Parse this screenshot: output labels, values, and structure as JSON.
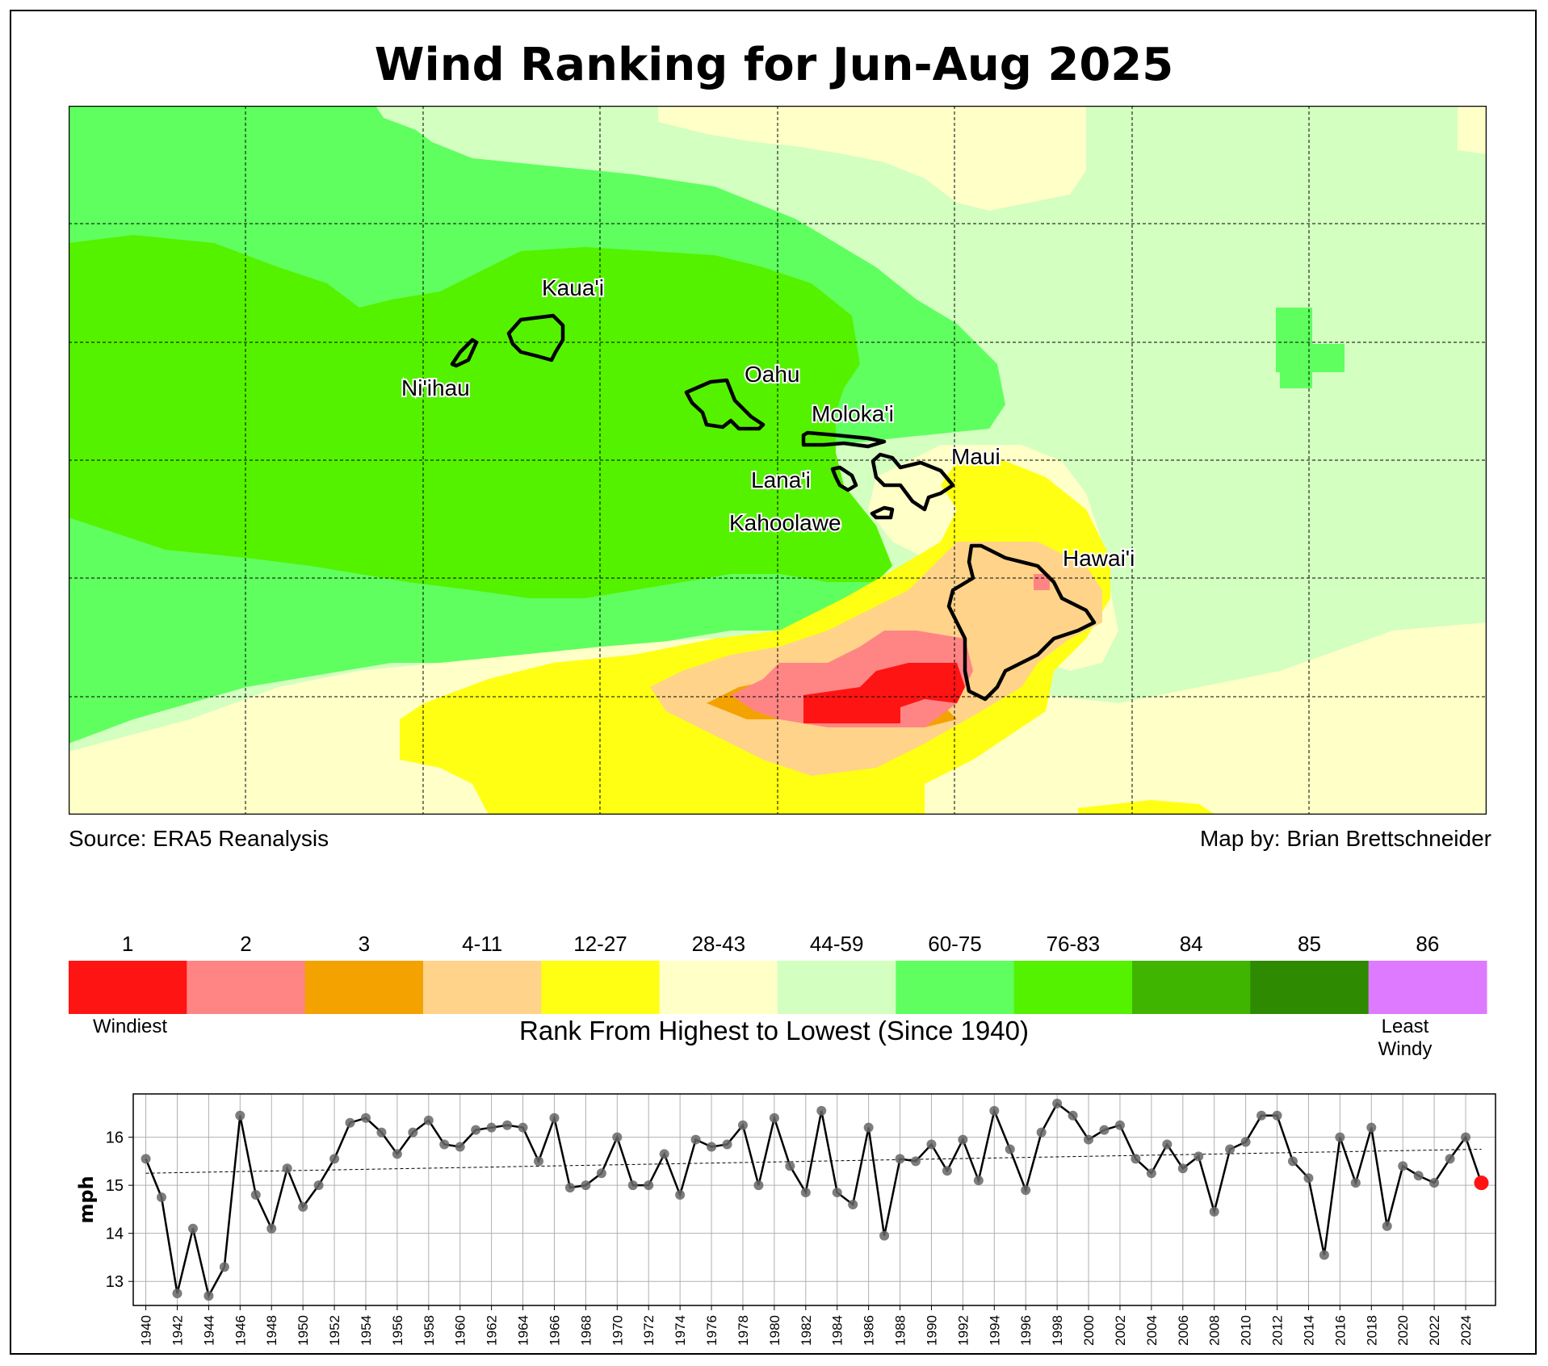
{
  "title": "Wind Ranking for Jun-Aug 2025",
  "source": "Source: ERA5 Reanalysis",
  "credit": "Map by: Brian Brettschneider",
  "islands": [
    "Kaua'i",
    "Ni'ihau",
    "Oahu",
    "Moloka'i",
    "Maui",
    "Lana'i",
    "Kahoolawe",
    "Hawai'i"
  ],
  "legend": {
    "caption": "Rank From Highest to Lowest (Since 1940)",
    "low_label": "Windiest",
    "high_label_1": "Least",
    "high_label_2": "Windy",
    "bins": [
      {
        "label": "1",
        "color": "#ff1414"
      },
      {
        "label": "2",
        "color": "#ff8585"
      },
      {
        "label": "3",
        "color": "#f4a200"
      },
      {
        "label": "4-11",
        "color": "#ffd38a"
      },
      {
        "label": "12-27",
        "color": "#ffff14"
      },
      {
        "label": "28-43",
        "color": "#ffffc8"
      },
      {
        "label": "44-59",
        "color": "#d3ffc0"
      },
      {
        "label": "60-75",
        "color": "#5fff5f"
      },
      {
        "label": "76-83",
        "color": "#55f200"
      },
      {
        "label": "84",
        "color": "#3fb500"
      },
      {
        "label": "85",
        "color": "#2e8a00"
      },
      {
        "label": "86",
        "color": "#dd7aff"
      }
    ]
  },
  "chart_data": {
    "type": "line",
    "ylabel": "mph",
    "ylim": [
      12.5,
      16.9
    ],
    "yticks": [
      13,
      14,
      15,
      16
    ],
    "xlim": [
      1939.2,
      2025.9
    ],
    "xticks": [
      1940,
      1942,
      1944,
      1946,
      1948,
      1950,
      1952,
      1954,
      1956,
      1958,
      1960,
      1962,
      1964,
      1966,
      1968,
      1970,
      1972,
      1974,
      1976,
      1978,
      1980,
      1982,
      1984,
      1986,
      1988,
      1990,
      1992,
      1994,
      1996,
      1998,
      2000,
      2002,
      2004,
      2006,
      2008,
      2010,
      2012,
      2014,
      2016,
      2018,
      2020,
      2022,
      2024
    ],
    "grid": true,
    "series": [
      {
        "x": [
          1940,
          1941,
          1942,
          1943,
          1944,
          1945,
          1946,
          1947,
          1948,
          1949,
          1950,
          1951,
          1952,
          1953,
          1954,
          1955,
          1956,
          1957,
          1958,
          1959,
          1960,
          1961,
          1962,
          1963,
          1964,
          1965,
          1966,
          1967,
          1968,
          1969,
          1970,
          1971,
          1972,
          1973,
          1974,
          1975,
          1976,
          1977,
          1978,
          1979,
          1980,
          1981,
          1982,
          1983,
          1984,
          1985,
          1986,
          1987,
          1988,
          1989,
          1990,
          1991,
          1992,
          1993,
          1994,
          1995,
          1996,
          1997,
          1998,
          1999,
          2000,
          2001,
          2002,
          2003,
          2004,
          2005,
          2006,
          2007,
          2008,
          2009,
          2010,
          2011,
          2012,
          2013,
          2014,
          2015,
          2016,
          2017,
          2018,
          2019,
          2020,
          2021,
          2022,
          2023,
          2024,
          2025
        ],
        "values": [
          15.55,
          14.75,
          12.75,
          14.1,
          12.7,
          13.3,
          16.45,
          14.8,
          14.1,
          15.35,
          14.55,
          15.0,
          15.55,
          16.3,
          16.4,
          16.1,
          15.65,
          16.1,
          16.35,
          15.85,
          15.8,
          16.15,
          16.2,
          16.25,
          16.2,
          15.5,
          16.4,
          14.95,
          15.0,
          15.25,
          16.0,
          15.0,
          15.0,
          15.65,
          14.8,
          15.95,
          15.8,
          15.85,
          16.25,
          15.0,
          16.4,
          15.4,
          14.85,
          16.55,
          14.85,
          14.6,
          16.2,
          13.95,
          15.55,
          15.5,
          15.85,
          15.3,
          15.95,
          15.1,
          16.55,
          15.75,
          14.9,
          16.1,
          16.7,
          16.45,
          15.95,
          16.15,
          16.25,
          15.55,
          15.25,
          15.85,
          15.35,
          15.6,
          14.45,
          15.75,
          15.9,
          16.45,
          16.45,
          15.5,
          15.15,
          13.55,
          16.0,
          15.05,
          16.2,
          14.15,
          15.4,
          15.2,
          15.05,
          15.55,
          16.0,
          15.05
        ]
      }
    ],
    "trend": {
      "start": [
        1940,
        15.25
      ],
      "end": [
        2025,
        15.75
      ]
    },
    "highlight": {
      "x": 2025,
      "value": 15.05,
      "color": "#ff1414"
    }
  }
}
